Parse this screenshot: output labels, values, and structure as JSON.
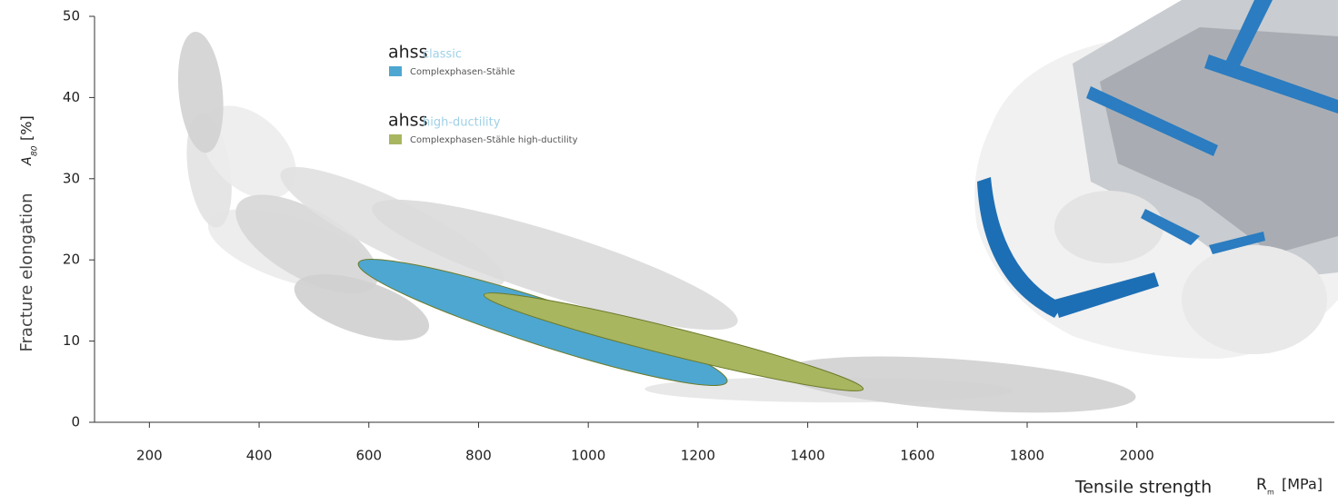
{
  "chart_data": {
    "type": "range",
    "x_label": "Tensile strength",
    "x_symbol": "R",
    "x_symbol_sub": "m",
    "x_unit": "[MPa]",
    "y_label": "Fracture elongation",
    "y_symbol": "A",
    "y_symbol_sub": "80",
    "y_unit": "[%]",
    "xlim": [
      100,
      2360
    ],
    "ylim": [
      0,
      50
    ],
    "xticks": [
      200,
      400,
      600,
      800,
      1000,
      1200,
      1400,
      1600,
      1800,
      2000
    ],
    "yticks": [
      0,
      10,
      20,
      30,
      40,
      50
    ],
    "regions": [
      {
        "start": [
          308,
          24.6
        ],
        "end": [
          614,
          17.9
        ],
        "width": 7.8,
        "color": "#ebebeb"
      },
      {
        "start": [
          294,
          38
        ],
        "end": [
          324,
          24
        ],
        "width": 5.2,
        "color": "#e2e2e2"
      },
      {
        "start": [
          308,
          38
        ],
        "end": [
          454,
          28.5
        ],
        "width": 8.9,
        "color": "#ececec"
      },
      {
        "start": [
          283,
          48.1
        ],
        "end": [
          304,
          33.2
        ],
        "width": 5.4,
        "color": "#d2d2d2"
      },
      {
        "start": [
          361,
          26.8
        ],
        "end": [
          614,
          17.1
        ],
        "width": 8.4,
        "color": "#d6d6d6"
      },
      {
        "start": [
          440,
          30.8
        ],
        "end": [
          846,
          17.3
        ],
        "width": 6.7,
        "color": "#e0e0e0"
      },
      {
        "start": [
          606,
          26.5
        ],
        "end": [
          1272,
          12.3
        ],
        "width": 7.8,
        "color": "#dadada"
      },
      {
        "start": [
          465,
          16.8
        ],
        "end": [
          709,
          11.5
        ],
        "width": 6.5,
        "color": "#cfcfcf"
      },
      {
        "start": [
          1103,
          4.1
        ],
        "end": [
          1774,
          3.9
        ],
        "width": 3.1,
        "color": "#e6e6e6"
      },
      {
        "start": [
          1351,
          6.2
        ],
        "end": [
          1998,
          3.1
        ],
        "width": 6.2,
        "color": "#d0d0d0"
      }
    ],
    "series": [
      {
        "brand": "ahss",
        "group": "classic",
        "name": "Complexphasen-Stähle",
        "color": "#4ea7d1",
        "start": [
          581,
          19.6
        ],
        "end": [
          1253,
          5.0
        ],
        "width": 5.6
      },
      {
        "brand": "ahss",
        "group": "high-ductility",
        "name": "Complexphasen-Stähle high-ductility",
        "color": "#a8b660",
        "start": [
          810,
          15.7
        ],
        "end": [
          1501,
          4.1
        ],
        "width": 3.4
      }
    ]
  }
}
